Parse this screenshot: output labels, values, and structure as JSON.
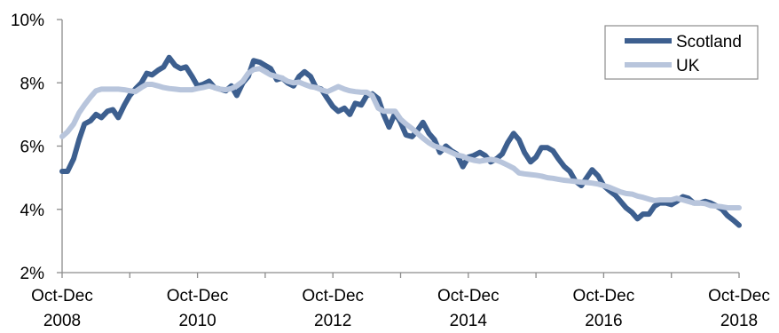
{
  "chart_data": {
    "type": "line",
    "title": "",
    "xlabel": "",
    "ylabel": "",
    "ylim": [
      2,
      10
    ],
    "y_ticks": [
      "2%",
      "4%",
      "6%",
      "8%",
      "10%"
    ],
    "x_tick_labels": [
      {
        "line1": "Oct-Dec",
        "line2": "2008"
      },
      {
        "line1": "Oct-Dec",
        "line2": "2010"
      },
      {
        "line1": "Oct-Dec",
        "line2": "2012"
      },
      {
        "line1": "Oct-Dec",
        "line2": "2014"
      },
      {
        "line1": "Oct-Dec",
        "line2": "2016"
      },
      {
        "line1": "Oct-Dec",
        "line2": "2018"
      }
    ],
    "x_range": [
      2008.75,
      2018.75
    ],
    "grid": false,
    "legend_position": "top-right",
    "series": [
      {
        "name": "Scotland",
        "color": "#3d5f8f",
        "points": [
          [
            2008.75,
            5.2
          ],
          [
            2008.83,
            5.2
          ],
          [
            2008.92,
            5.6
          ],
          [
            2009.0,
            6.2
          ],
          [
            2009.08,
            6.7
          ],
          [
            2009.17,
            6.8
          ],
          [
            2009.25,
            7.0
          ],
          [
            2009.33,
            6.9
          ],
          [
            2009.42,
            7.1
          ],
          [
            2009.5,
            7.15
          ],
          [
            2009.58,
            6.9
          ],
          [
            2009.67,
            7.3
          ],
          [
            2009.75,
            7.6
          ],
          [
            2009.83,
            7.8
          ],
          [
            2009.92,
            8.0
          ],
          [
            2010.0,
            8.3
          ],
          [
            2010.08,
            8.25
          ],
          [
            2010.17,
            8.4
          ],
          [
            2010.25,
            8.5
          ],
          [
            2010.33,
            8.8
          ],
          [
            2010.42,
            8.55
          ],
          [
            2010.5,
            8.45
          ],
          [
            2010.58,
            8.5
          ],
          [
            2010.67,
            8.2
          ],
          [
            2010.75,
            7.9
          ],
          [
            2010.83,
            7.95
          ],
          [
            2010.92,
            8.05
          ],
          [
            2011.0,
            7.85
          ],
          [
            2011.08,
            7.8
          ],
          [
            2011.17,
            7.75
          ],
          [
            2011.25,
            7.9
          ],
          [
            2011.33,
            7.6
          ],
          [
            2011.42,
            8.0
          ],
          [
            2011.5,
            8.2
          ],
          [
            2011.58,
            8.7
          ],
          [
            2011.67,
            8.65
          ],
          [
            2011.75,
            8.55
          ],
          [
            2011.83,
            8.45
          ],
          [
            2011.92,
            8.1
          ],
          [
            2012.0,
            8.15
          ],
          [
            2012.08,
            8.0
          ],
          [
            2012.17,
            7.9
          ],
          [
            2012.25,
            8.2
          ],
          [
            2012.33,
            8.35
          ],
          [
            2012.42,
            8.2
          ],
          [
            2012.5,
            7.85
          ],
          [
            2012.58,
            7.8
          ],
          [
            2012.67,
            7.5
          ],
          [
            2012.75,
            7.25
          ],
          [
            2012.83,
            7.1
          ],
          [
            2012.92,
            7.2
          ],
          [
            2013.0,
            7.0
          ],
          [
            2013.08,
            7.35
          ],
          [
            2013.17,
            7.3
          ],
          [
            2013.25,
            7.6
          ],
          [
            2013.33,
            7.65
          ],
          [
            2013.42,
            7.5
          ],
          [
            2013.5,
            7.0
          ],
          [
            2013.58,
            6.6
          ],
          [
            2013.67,
            7.05
          ],
          [
            2013.75,
            6.75
          ],
          [
            2013.83,
            6.35
          ],
          [
            2013.92,
            6.3
          ],
          [
            2014.0,
            6.5
          ],
          [
            2014.08,
            6.75
          ],
          [
            2014.17,
            6.4
          ],
          [
            2014.25,
            6.2
          ],
          [
            2014.33,
            5.8
          ],
          [
            2014.42,
            6.0
          ],
          [
            2014.5,
            5.85
          ],
          [
            2014.58,
            5.75
          ],
          [
            2014.67,
            5.35
          ],
          [
            2014.75,
            5.65
          ],
          [
            2014.83,
            5.7
          ],
          [
            2014.92,
            5.8
          ],
          [
            2015.0,
            5.7
          ],
          [
            2015.08,
            5.5
          ],
          [
            2015.17,
            5.6
          ],
          [
            2015.25,
            5.75
          ],
          [
            2015.33,
            6.1
          ],
          [
            2015.42,
            6.4
          ],
          [
            2015.5,
            6.2
          ],
          [
            2015.58,
            5.8
          ],
          [
            2015.67,
            5.5
          ],
          [
            2015.75,
            5.65
          ],
          [
            2015.83,
            5.95
          ],
          [
            2015.92,
            5.95
          ],
          [
            2016.0,
            5.85
          ],
          [
            2016.08,
            5.6
          ],
          [
            2016.17,
            5.35
          ],
          [
            2016.25,
            5.2
          ],
          [
            2016.33,
            4.9
          ],
          [
            2016.42,
            4.75
          ],
          [
            2016.5,
            5.0
          ],
          [
            2016.58,
            5.25
          ],
          [
            2016.67,
            5.05
          ],
          [
            2016.75,
            4.75
          ],
          [
            2016.83,
            4.6
          ],
          [
            2016.92,
            4.45
          ],
          [
            2017.0,
            4.25
          ],
          [
            2017.08,
            4.05
          ],
          [
            2017.17,
            3.9
          ],
          [
            2017.25,
            3.7
          ],
          [
            2017.33,
            3.85
          ],
          [
            2017.42,
            3.85
          ],
          [
            2017.5,
            4.1
          ],
          [
            2017.58,
            4.2
          ],
          [
            2017.67,
            4.2
          ],
          [
            2017.75,
            4.15
          ],
          [
            2017.83,
            4.25
          ],
          [
            2017.92,
            4.4
          ],
          [
            2018.0,
            4.35
          ],
          [
            2018.08,
            4.2
          ],
          [
            2018.17,
            4.2
          ],
          [
            2018.25,
            4.25
          ],
          [
            2018.33,
            4.2
          ],
          [
            2018.42,
            4.1
          ],
          [
            2018.5,
            4.0
          ],
          [
            2018.58,
            3.8
          ],
          [
            2018.67,
            3.65
          ],
          [
            2018.75,
            3.5
          ]
        ]
      },
      {
        "name": "UK",
        "color": "#b8c5dc",
        "points": [
          [
            2008.75,
            6.3
          ],
          [
            2008.83,
            6.45
          ],
          [
            2008.92,
            6.7
          ],
          [
            2009.0,
            7.05
          ],
          [
            2009.08,
            7.3
          ],
          [
            2009.17,
            7.55
          ],
          [
            2009.25,
            7.75
          ],
          [
            2009.33,
            7.8
          ],
          [
            2009.42,
            7.8
          ],
          [
            2009.5,
            7.8
          ],
          [
            2009.58,
            7.8
          ],
          [
            2009.67,
            7.78
          ],
          [
            2009.75,
            7.75
          ],
          [
            2009.83,
            7.72
          ],
          [
            2009.92,
            7.85
          ],
          [
            2010.0,
            7.95
          ],
          [
            2010.08,
            7.95
          ],
          [
            2010.17,
            7.9
          ],
          [
            2010.25,
            7.85
          ],
          [
            2010.33,
            7.82
          ],
          [
            2010.42,
            7.8
          ],
          [
            2010.5,
            7.78
          ],
          [
            2010.58,
            7.78
          ],
          [
            2010.67,
            7.78
          ],
          [
            2010.75,
            7.82
          ],
          [
            2010.83,
            7.85
          ],
          [
            2010.92,
            7.9
          ],
          [
            2011.0,
            7.85
          ],
          [
            2011.08,
            7.8
          ],
          [
            2011.17,
            7.78
          ],
          [
            2011.25,
            7.82
          ],
          [
            2011.33,
            7.9
          ],
          [
            2011.42,
            8.05
          ],
          [
            2011.5,
            8.3
          ],
          [
            2011.58,
            8.42
          ],
          [
            2011.67,
            8.45
          ],
          [
            2011.75,
            8.35
          ],
          [
            2011.83,
            8.25
          ],
          [
            2011.92,
            8.2
          ],
          [
            2012.0,
            8.15
          ],
          [
            2012.08,
            8.05
          ],
          [
            2012.17,
            8.0
          ],
          [
            2012.25,
            8.02
          ],
          [
            2012.33,
            7.95
          ],
          [
            2012.42,
            7.88
          ],
          [
            2012.5,
            7.85
          ],
          [
            2012.58,
            7.78
          ],
          [
            2012.67,
            7.72
          ],
          [
            2012.75,
            7.8
          ],
          [
            2012.83,
            7.88
          ],
          [
            2012.92,
            7.8
          ],
          [
            2013.0,
            7.75
          ],
          [
            2013.08,
            7.72
          ],
          [
            2013.17,
            7.7
          ],
          [
            2013.25,
            7.7
          ],
          [
            2013.33,
            7.6
          ],
          [
            2013.42,
            7.2
          ],
          [
            2013.5,
            7.1
          ],
          [
            2013.58,
            7.1
          ],
          [
            2013.67,
            7.1
          ],
          [
            2013.75,
            6.85
          ],
          [
            2013.83,
            6.7
          ],
          [
            2013.92,
            6.55
          ],
          [
            2014.0,
            6.4
          ],
          [
            2014.08,
            6.25
          ],
          [
            2014.17,
            6.1
          ],
          [
            2014.25,
            6.0
          ],
          [
            2014.33,
            5.95
          ],
          [
            2014.42,
            5.88
          ],
          [
            2014.5,
            5.8
          ],
          [
            2014.58,
            5.72
          ],
          [
            2014.67,
            5.68
          ],
          [
            2014.75,
            5.6
          ],
          [
            2014.83,
            5.55
          ],
          [
            2014.92,
            5.52
          ],
          [
            2015.0,
            5.55
          ],
          [
            2015.08,
            5.58
          ],
          [
            2015.17,
            5.55
          ],
          [
            2015.25,
            5.48
          ],
          [
            2015.33,
            5.4
          ],
          [
            2015.42,
            5.3
          ],
          [
            2015.5,
            5.15
          ],
          [
            2015.58,
            5.12
          ],
          [
            2015.67,
            5.1
          ],
          [
            2015.75,
            5.08
          ],
          [
            2015.83,
            5.05
          ],
          [
            2015.92,
            5.0
          ],
          [
            2016.0,
            4.98
          ],
          [
            2016.08,
            4.95
          ],
          [
            2016.17,
            4.92
          ],
          [
            2016.25,
            4.9
          ],
          [
            2016.33,
            4.88
          ],
          [
            2016.42,
            4.86
          ],
          [
            2016.5,
            4.85
          ],
          [
            2016.58,
            4.83
          ],
          [
            2016.67,
            4.8
          ],
          [
            2016.75,
            4.75
          ],
          [
            2016.83,
            4.7
          ],
          [
            2016.92,
            4.62
          ],
          [
            2017.0,
            4.55
          ],
          [
            2017.08,
            4.5
          ],
          [
            2017.17,
            4.48
          ],
          [
            2017.25,
            4.42
          ],
          [
            2017.33,
            4.38
          ],
          [
            2017.42,
            4.32
          ],
          [
            2017.5,
            4.28
          ],
          [
            2017.58,
            4.3
          ],
          [
            2017.67,
            4.3
          ],
          [
            2017.75,
            4.3
          ],
          [
            2017.83,
            4.35
          ],
          [
            2017.92,
            4.3
          ],
          [
            2018.0,
            4.25
          ],
          [
            2018.08,
            4.2
          ],
          [
            2018.17,
            4.2
          ],
          [
            2018.25,
            4.18
          ],
          [
            2018.33,
            4.12
          ],
          [
            2018.42,
            4.1
          ],
          [
            2018.5,
            4.08
          ],
          [
            2018.58,
            4.05
          ],
          [
            2018.67,
            4.05
          ],
          [
            2018.75,
            4.05
          ]
        ]
      }
    ]
  }
}
